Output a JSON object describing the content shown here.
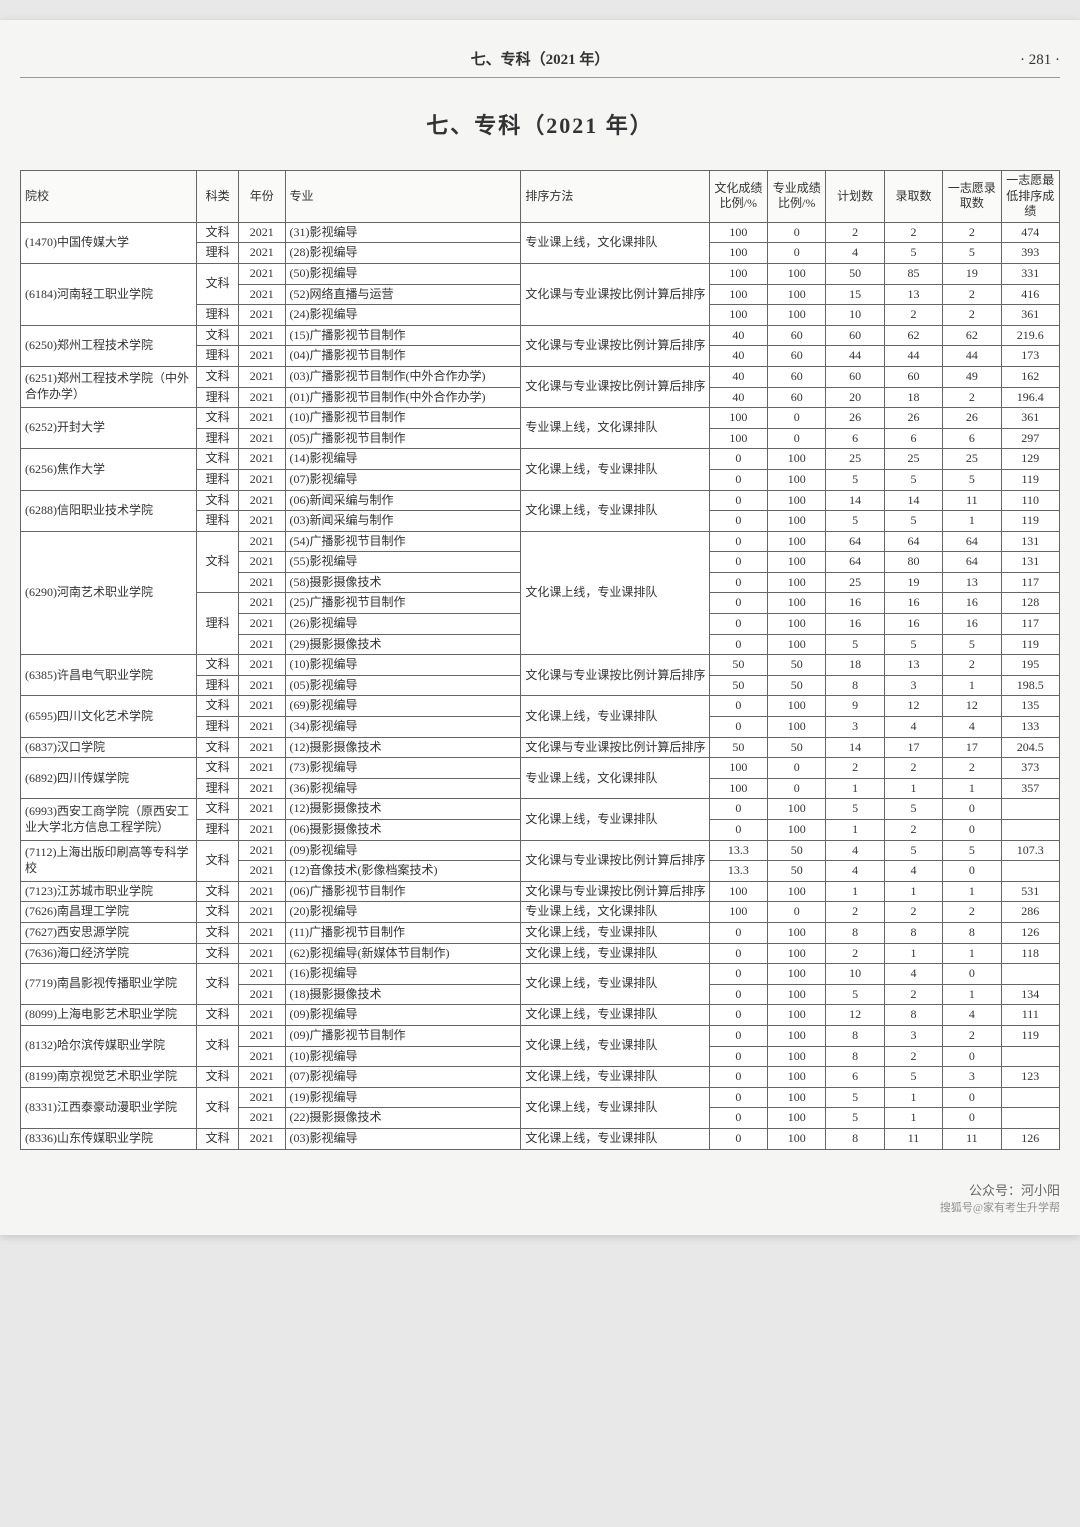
{
  "header": {
    "section_label": "七、专科（2021 年）",
    "page_number": "· 281 ·",
    "title": "七、专科（2021 年）"
  },
  "watermark": {
    "line1": "公众号：河小阳",
    "line2": "搜狐号@家有考生升学帮"
  },
  "columns": {
    "school": "院校",
    "category": "科类",
    "year": "年份",
    "major": "专业",
    "sort_method": "排序方法",
    "culture_ratio": "文化成绩比例/%",
    "pro_ratio": "专业成绩比例/%",
    "plan": "计划数",
    "enroll": "录取数",
    "wish_enroll": "一志愿录取数",
    "wish_min": "一志愿最低排序成绩"
  },
  "rows": [
    {
      "school": "(1470)中国传媒大学",
      "school_rs": 2,
      "cat": "文科",
      "cat_rs": 1,
      "year": "2021",
      "major": "(31)影视编导",
      "sort": "专业课上线，文化课排队",
      "sort_rs": 2,
      "c": "100",
      "p": "0",
      "plan": "2",
      "en": "2",
      "w": "2",
      "min": "474"
    },
    {
      "cat": "理科",
      "cat_rs": 1,
      "year": "2021",
      "major": "(28)影视编导",
      "c": "100",
      "p": "0",
      "plan": "4",
      "en": "5",
      "w": "5",
      "min": "393"
    },
    {
      "school": "(6184)河南轻工职业学院",
      "school_rs": 3,
      "cat": "文科",
      "cat_rs": 2,
      "year": "2021",
      "major": "(50)影视编导",
      "sort": "文化课与专业课按比例计算后排序",
      "sort_rs": 3,
      "c": "100",
      "p": "100",
      "plan": "50",
      "en": "85",
      "w": "19",
      "min": "331"
    },
    {
      "year": "2021",
      "major": "(52)网络直播与运营",
      "c": "100",
      "p": "100",
      "plan": "15",
      "en": "13",
      "w": "2",
      "min": "416"
    },
    {
      "cat": "理科",
      "cat_rs": 1,
      "year": "2021",
      "major": "(24)影视编导",
      "c": "100",
      "p": "100",
      "plan": "10",
      "en": "2",
      "w": "2",
      "min": "361"
    },
    {
      "school": "(6250)郑州工程技术学院",
      "school_rs": 2,
      "cat": "文科",
      "cat_rs": 1,
      "year": "2021",
      "major": "(15)广播影视节目制作",
      "sort": "文化课与专业课按比例计算后排序",
      "sort_rs": 2,
      "c": "40",
      "p": "60",
      "plan": "60",
      "en": "62",
      "w": "62",
      "min": "219.6"
    },
    {
      "cat": "理科",
      "cat_rs": 1,
      "year": "2021",
      "major": "(04)广播影视节目制作",
      "c": "40",
      "p": "60",
      "plan": "44",
      "en": "44",
      "w": "44",
      "min": "173"
    },
    {
      "school": "(6251)郑州工程技术学院（中外合作办学）",
      "school_rs": 2,
      "cat": "文科",
      "cat_rs": 1,
      "year": "2021",
      "major": "(03)广播影视节目制作(中外合作办学)",
      "sort": "文化课与专业课按比例计算后排序",
      "sort_rs": 2,
      "c": "40",
      "p": "60",
      "plan": "60",
      "en": "60",
      "w": "49",
      "min": "162"
    },
    {
      "cat": "理科",
      "cat_rs": 1,
      "year": "2021",
      "major": "(01)广播影视节目制作(中外合作办学)",
      "c": "40",
      "p": "60",
      "plan": "20",
      "en": "18",
      "w": "2",
      "min": "196.4"
    },
    {
      "school": "(6252)开封大学",
      "school_rs": 2,
      "cat": "文科",
      "cat_rs": 1,
      "year": "2021",
      "major": "(10)广播影视节目制作",
      "sort": "专业课上线，文化课排队",
      "sort_rs": 2,
      "c": "100",
      "p": "0",
      "plan": "26",
      "en": "26",
      "w": "26",
      "min": "361"
    },
    {
      "cat": "理科",
      "cat_rs": 1,
      "year": "2021",
      "major": "(05)广播影视节目制作",
      "c": "100",
      "p": "0",
      "plan": "6",
      "en": "6",
      "w": "6",
      "min": "297"
    },
    {
      "school": "(6256)焦作大学",
      "school_rs": 2,
      "cat": "文科",
      "cat_rs": 1,
      "year": "2021",
      "major": "(14)影视编导",
      "sort": "文化课上线，专业课排队",
      "sort_rs": 2,
      "c": "0",
      "p": "100",
      "plan": "25",
      "en": "25",
      "w": "25",
      "min": "129"
    },
    {
      "cat": "理科",
      "cat_rs": 1,
      "year": "2021",
      "major": "(07)影视编导",
      "c": "0",
      "p": "100",
      "plan": "5",
      "en": "5",
      "w": "5",
      "min": "119"
    },
    {
      "school": "(6288)信阳职业技术学院",
      "school_rs": 2,
      "cat": "文科",
      "cat_rs": 1,
      "year": "2021",
      "major": "(06)新闻采编与制作",
      "sort": "文化课上线，专业课排队",
      "sort_rs": 2,
      "c": "0",
      "p": "100",
      "plan": "14",
      "en": "14",
      "w": "11",
      "min": "110"
    },
    {
      "cat": "理科",
      "cat_rs": 1,
      "year": "2021",
      "major": "(03)新闻采编与制作",
      "c": "0",
      "p": "100",
      "plan": "5",
      "en": "5",
      "w": "1",
      "min": "119"
    },
    {
      "school": "(6290)河南艺术职业学院",
      "school_rs": 6,
      "cat": "文科",
      "cat_rs": 3,
      "year": "2021",
      "major": "(54)广播影视节目制作",
      "sort": "文化课上线，专业课排队",
      "sort_rs": 6,
      "c": "0",
      "p": "100",
      "plan": "64",
      "en": "64",
      "w": "64",
      "min": "131"
    },
    {
      "year": "2021",
      "major": "(55)影视编导",
      "c": "0",
      "p": "100",
      "plan": "64",
      "en": "80",
      "w": "64",
      "min": "131"
    },
    {
      "year": "2021",
      "major": "(58)摄影摄像技术",
      "c": "0",
      "p": "100",
      "plan": "25",
      "en": "19",
      "w": "13",
      "min": "117"
    },
    {
      "cat": "理科",
      "cat_rs": 3,
      "year": "2021",
      "major": "(25)广播影视节目制作",
      "c": "0",
      "p": "100",
      "plan": "16",
      "en": "16",
      "w": "16",
      "min": "128"
    },
    {
      "year": "2021",
      "major": "(26)影视编导",
      "c": "0",
      "p": "100",
      "plan": "16",
      "en": "16",
      "w": "16",
      "min": "117"
    },
    {
      "year": "2021",
      "major": "(29)摄影摄像技术",
      "c": "0",
      "p": "100",
      "plan": "5",
      "en": "5",
      "w": "5",
      "min": "119"
    },
    {
      "school": "(6385)许昌电气职业学院",
      "school_rs": 2,
      "cat": "文科",
      "cat_rs": 1,
      "year": "2021",
      "major": "(10)影视编导",
      "sort": "文化课与专业课按比例计算后排序",
      "sort_rs": 2,
      "c": "50",
      "p": "50",
      "plan": "18",
      "en": "13",
      "w": "2",
      "min": "195"
    },
    {
      "cat": "理科",
      "cat_rs": 1,
      "year": "2021",
      "major": "(05)影视编导",
      "c": "50",
      "p": "50",
      "plan": "8",
      "en": "3",
      "w": "1",
      "min": "198.5"
    },
    {
      "school": "(6595)四川文化艺术学院",
      "school_rs": 2,
      "cat": "文科",
      "cat_rs": 1,
      "year": "2021",
      "major": "(69)影视编导",
      "sort": "文化课上线，专业课排队",
      "sort_rs": 2,
      "c": "0",
      "p": "100",
      "plan": "9",
      "en": "12",
      "w": "12",
      "min": "135"
    },
    {
      "cat": "理科",
      "cat_rs": 1,
      "year": "2021",
      "major": "(34)影视编导",
      "c": "0",
      "p": "100",
      "plan": "3",
      "en": "4",
      "w": "4",
      "min": "133"
    },
    {
      "school": "(6837)汉口学院",
      "school_rs": 1,
      "cat": "文科",
      "cat_rs": 1,
      "year": "2021",
      "major": "(12)摄影摄像技术",
      "sort": "文化课与专业课按比例计算后排序",
      "sort_rs": 1,
      "c": "50",
      "p": "50",
      "plan": "14",
      "en": "17",
      "w": "17",
      "min": "204.5"
    },
    {
      "school": "(6892)四川传媒学院",
      "school_rs": 2,
      "cat": "文科",
      "cat_rs": 1,
      "year": "2021",
      "major": "(73)影视编导",
      "sort": "专业课上线，文化课排队",
      "sort_rs": 2,
      "c": "100",
      "p": "0",
      "plan": "2",
      "en": "2",
      "w": "2",
      "min": "373"
    },
    {
      "cat": "理科",
      "cat_rs": 1,
      "year": "2021",
      "major": "(36)影视编导",
      "c": "100",
      "p": "0",
      "plan": "1",
      "en": "1",
      "w": "1",
      "min": "357"
    },
    {
      "school": "(6993)西安工商学院（原西安工业大学北方信息工程学院）",
      "school_rs": 2,
      "cat": "文科",
      "cat_rs": 1,
      "year": "2021",
      "major": "(12)摄影摄像技术",
      "sort": "文化课上线，专业课排队",
      "sort_rs": 2,
      "c": "0",
      "p": "100",
      "plan": "5",
      "en": "5",
      "w": "0",
      "min": ""
    },
    {
      "cat": "理科",
      "cat_rs": 1,
      "year": "2021",
      "major": "(06)摄影摄像技术",
      "c": "0",
      "p": "100",
      "plan": "1",
      "en": "2",
      "w": "0",
      "min": ""
    },
    {
      "school": "(7112)上海出版印刷高等专科学校",
      "school_rs": 2,
      "cat": "文科",
      "cat_rs": 2,
      "year": "2021",
      "major": "(09)影视编导",
      "sort": "文化课与专业课按比例计算后排序",
      "sort_rs": 2,
      "c": "13.3",
      "p": "50",
      "plan": "4",
      "en": "5",
      "w": "5",
      "min": "107.3"
    },
    {
      "year": "2021",
      "major": "(12)音像技术(影像档案技术)",
      "c": "13.3",
      "p": "50",
      "plan": "4",
      "en": "4",
      "w": "0",
      "min": ""
    },
    {
      "school": "(7123)江苏城市职业学院",
      "school_rs": 1,
      "cat": "文科",
      "cat_rs": 1,
      "year": "2021",
      "major": "(06)广播影视节目制作",
      "sort": "文化课与专业课按比例计算后排序",
      "sort_rs": 1,
      "c": "100",
      "p": "100",
      "plan": "1",
      "en": "1",
      "w": "1",
      "min": "531"
    },
    {
      "school": "(7626)南昌理工学院",
      "school_rs": 1,
      "cat": "文科",
      "cat_rs": 1,
      "year": "2021",
      "major": "(20)影视编导",
      "sort": "专业课上线，文化课排队",
      "sort_rs": 1,
      "c": "100",
      "p": "0",
      "plan": "2",
      "en": "2",
      "w": "2",
      "min": "286"
    },
    {
      "school": "(7627)西安思源学院",
      "school_rs": 1,
      "cat": "文科",
      "cat_rs": 1,
      "year": "2021",
      "major": "(11)广播影视节目制作",
      "sort": "文化课上线，专业课排队",
      "sort_rs": 1,
      "c": "0",
      "p": "100",
      "plan": "8",
      "en": "8",
      "w": "8",
      "min": "126"
    },
    {
      "school": "(7636)海口经济学院",
      "school_rs": 1,
      "cat": "文科",
      "cat_rs": 1,
      "year": "2021",
      "major": "(62)影视编导(新媒体节目制作)",
      "sort": "文化课上线，专业课排队",
      "sort_rs": 1,
      "c": "0",
      "p": "100",
      "plan": "2",
      "en": "1",
      "w": "1",
      "min": "118"
    },
    {
      "school": "(7719)南昌影视传播职业学院",
      "school_rs": 2,
      "cat": "文科",
      "cat_rs": 2,
      "year": "2021",
      "major": "(16)影视编导",
      "sort": "文化课上线，专业课排队",
      "sort_rs": 2,
      "c": "0",
      "p": "100",
      "plan": "10",
      "en": "4",
      "w": "0",
      "min": ""
    },
    {
      "year": "2021",
      "major": "(18)摄影摄像技术",
      "c": "0",
      "p": "100",
      "plan": "5",
      "en": "2",
      "w": "1",
      "min": "134"
    },
    {
      "school": "(8099)上海电影艺术职业学院",
      "school_rs": 1,
      "cat": "文科",
      "cat_rs": 1,
      "year": "2021",
      "major": "(09)影视编导",
      "sort": "文化课上线，专业课排队",
      "sort_rs": 1,
      "c": "0",
      "p": "100",
      "plan": "12",
      "en": "8",
      "w": "4",
      "min": "111"
    },
    {
      "school": "(8132)哈尔滨传媒职业学院",
      "school_rs": 2,
      "cat": "文科",
      "cat_rs": 2,
      "year": "2021",
      "major": "(09)广播影视节目制作",
      "sort": "文化课上线，专业课排队",
      "sort_rs": 2,
      "c": "0",
      "p": "100",
      "plan": "8",
      "en": "3",
      "w": "2",
      "min": "119"
    },
    {
      "year": "2021",
      "major": "(10)影视编导",
      "c": "0",
      "p": "100",
      "plan": "8",
      "en": "2",
      "w": "0",
      "min": ""
    },
    {
      "school": "(8199)南京视觉艺术职业学院",
      "school_rs": 1,
      "cat": "文科",
      "cat_rs": 1,
      "year": "2021",
      "major": "(07)影视编导",
      "sort": "文化课上线，专业课排队",
      "sort_rs": 1,
      "c": "0",
      "p": "100",
      "plan": "6",
      "en": "5",
      "w": "3",
      "min": "123"
    },
    {
      "school": "(8331)江西泰豪动漫职业学院",
      "school_rs": 2,
      "cat": "文科",
      "cat_rs": 2,
      "year": "2021",
      "major": "(19)影视编导",
      "sort": "文化课上线，专业课排队",
      "sort_rs": 2,
      "c": "0",
      "p": "100",
      "plan": "5",
      "en": "1",
      "w": "0",
      "min": ""
    },
    {
      "year": "2021",
      "major": "(22)摄影摄像技术",
      "c": "0",
      "p": "100",
      "plan": "5",
      "en": "1",
      "w": "0",
      "min": ""
    },
    {
      "school": "(8336)山东传媒职业学院",
      "school_rs": 1,
      "cat": "文科",
      "cat_rs": 1,
      "year": "2021",
      "major": "(03)影视编导",
      "sort": "文化课上线，专业课排队",
      "sort_rs": 1,
      "c": "0",
      "p": "100",
      "plan": "8",
      "en": "11",
      "w": "11",
      "min": "126"
    }
  ]
}
